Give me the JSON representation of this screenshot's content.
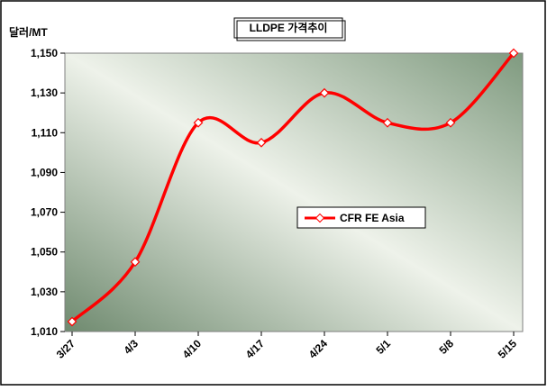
{
  "chart_data": {
    "type": "line",
    "title": "LLDPE 가격추이",
    "y_label": "달러/MT",
    "categories": [
      "3/27",
      "4/3",
      "4/10",
      "4/17",
      "4/24",
      "5/1",
      "5/8",
      "5/15"
    ],
    "series": [
      {
        "name": "CFR FE Asia",
        "color": "#ff0000",
        "values": [
          1015,
          1045,
          1115,
          1105,
          1130,
          1115,
          1115,
          1150
        ]
      }
    ],
    "ylim": [
      1010,
      1150
    ],
    "yticks": [
      {
        "value": 1010,
        "label": "1,010"
      },
      {
        "value": 1030,
        "label": "1,030"
      },
      {
        "value": 1050,
        "label": "1,050"
      },
      {
        "value": 1070,
        "label": "1,070"
      },
      {
        "value": 1090,
        "label": "1,090"
      },
      {
        "value": 1110,
        "label": "1,110"
      },
      {
        "value": 1130,
        "label": "1,130"
      },
      {
        "value": 1150,
        "label": "1,150"
      }
    ],
    "smooth": true
  }
}
